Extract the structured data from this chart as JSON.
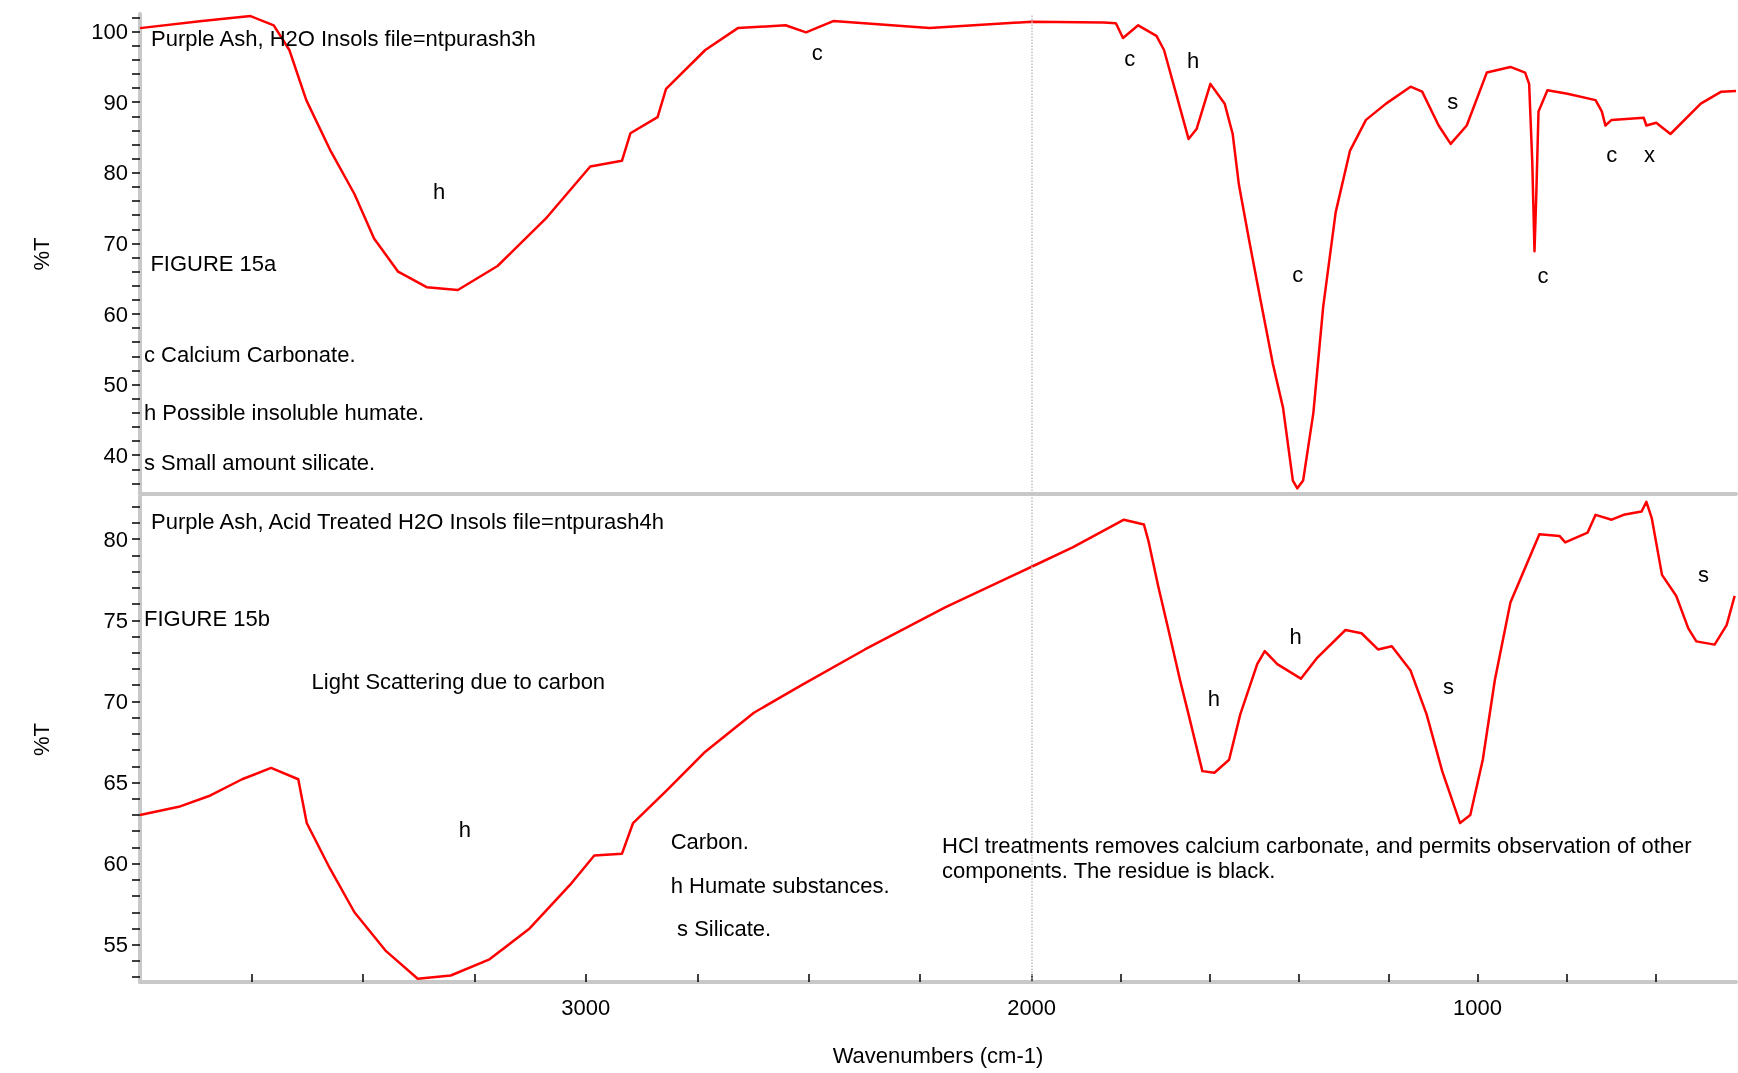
{
  "chart_data": [
    {
      "type": "line",
      "title": "Purple Ash, H2O Insols file=ntpurash3h",
      "ylabel": "%T",
      "color": "#ff0000",
      "tick_labels": "y",
      "xlim": [
        4000,
        420
      ],
      "ylim": [
        34.5,
        102.5
      ],
      "yticks": [
        {
          "value": 36,
          "label": null
        },
        {
          "value": 38,
          "label": null
        },
        40,
        {
          "value": 42,
          "label": null
        },
        {
          "value": 44,
          "label": null
        },
        {
          "value": 46,
          "label": null
        },
        {
          "value": 48,
          "label": null
        },
        50,
        {
          "value": 52,
          "label": null
        },
        {
          "value": 54,
          "label": null
        },
        {
          "value": 56,
          "label": null
        },
        {
          "value": 58,
          "label": null
        },
        60,
        {
          "value": 62,
          "label": null
        },
        {
          "value": 64,
          "label": null
        },
        {
          "value": 66,
          "label": null
        },
        {
          "value": 68,
          "label": null
        },
        70,
        {
          "value": 72,
          "label": null
        },
        {
          "value": 74,
          "label": null
        },
        {
          "value": 76,
          "label": null
        },
        {
          "value": 78,
          "label": null
        },
        80,
        {
          "value": 82,
          "label": null
        },
        {
          "value": 84,
          "label": null
        },
        {
          "value": 86,
          "label": null
        },
        {
          "value": 88,
          "label": null
        },
        90,
        {
          "value": 92,
          "label": null
        },
        {
          "value": 94,
          "label": null
        },
        {
          "value": 96,
          "label": null
        },
        {
          "value": 98,
          "label": null
        },
        100,
        {
          "value": 102,
          "label": null
        }
      ],
      "x": [
        4000,
        3861,
        3752,
        3700,
        3665,
        3627,
        3574,
        3519,
        3475,
        3421,
        3357,
        3287,
        3198,
        3090,
        2990,
        2919,
        2900,
        2839,
        2820,
        2732,
        2659,
        2552,
        2506,
        2445,
        2229,
        2000,
        1838,
        1811,
        1795,
        1761,
        1720,
        1703,
        1675,
        1648,
        1630,
        1599,
        1567,
        1549,
        1535,
        1512,
        1486,
        1459,
        1436,
        1414,
        1404,
        1391,
        1368,
        1346,
        1318,
        1286,
        1250,
        1205,
        1150,
        1124,
        1087,
        1060,
        1024,
        979,
        926,
        893,
        884,
        877,
        872,
        868,
        863,
        843,
        798,
        735,
        721,
        713,
        699,
        627,
        621,
        599,
        567,
        499,
        453,
        420
      ],
      "values": [
        100.5,
        101.5,
        102.2,
        100.9,
        97.4,
        90.3,
        83.3,
        77.0,
        70.7,
        66.0,
        63.8,
        63.4,
        66.8,
        73.5,
        80.9,
        81.7,
        85.6,
        87.9,
        91.9,
        97.4,
        100.5,
        100.9,
        99.9,
        101.5,
        100.5,
        101.4,
        101.3,
        101.2,
        99.1,
        100.9,
        99.4,
        97.4,
        91.0,
        84.8,
        86.2,
        92.6,
        89.8,
        85.5,
        78.3,
        70.4,
        61.8,
        53.0,
        46.7,
        36.4,
        35.3,
        36.4,
        46.0,
        61.0,
        74.4,
        83.1,
        87.5,
        89.8,
        92.2,
        91.5,
        86.7,
        84.1,
        86.7,
        94.2,
        95.0,
        94.2,
        92.6,
        81.6,
        68.9,
        76.8,
        88.7,
        91.7,
        91.2,
        90.3,
        88.7,
        86.7,
        87.5,
        87.8,
        86.7,
        87.1,
        85.5,
        89.8,
        91.5,
        91.6
      ],
      "ref_lines": [
        {
          "axis": "x",
          "value": 2000,
          "color": "#c0c0c0",
          "line_style": "dotted"
        }
      ],
      "annotations": [
        "FIGURE 15a",
        "c Calcium Carbonate.",
        "h Possible insoluble humate.",
        "s Small amount silicate.",
        "h",
        "c",
        "c",
        "h",
        "c",
        "s",
        "c",
        "c",
        "x"
      ]
    },
    {
      "type": "line",
      "title": "Purple Ash, Acid Treated H2O Insols file=ntpurash4h",
      "xlabel": "Wavenumbers (cm-1)",
      "ylabel": "%T",
      "color": "#ff0000",
      "xlim": [
        4000,
        420
      ],
      "ylim": [
        52.7,
        82.6
      ],
      "xticks": [
        {
          "value": 3750,
          "label": null
        },
        {
          "value": 3500,
          "label": null
        },
        {
          "value": 3250,
          "label": null
        },
        3000,
        {
          "value": 2750,
          "label": null
        },
        {
          "value": 2500,
          "label": null
        },
        {
          "value": 2250,
          "label": null
        },
        2000,
        {
          "value": 1800,
          "label": null
        },
        {
          "value": 1600,
          "label": null
        },
        {
          "value": 1400,
          "label": null
        },
        {
          "value": 1200,
          "label": null
        },
        1000,
        {
          "value": 800,
          "label": null
        },
        {
          "value": 600,
          "label": null
        }
      ],
      "yticks": [
        {
          "value": 53,
          "label": null
        },
        {
          "value": 54,
          "label": null
        },
        55,
        {
          "value": 56,
          "label": null
        },
        {
          "value": 57,
          "label": null
        },
        {
          "value": 58,
          "label": null
        },
        {
          "value": 59,
          "label": null
        },
        60,
        {
          "value": 61,
          "label": null
        },
        {
          "value": 62,
          "label": null
        },
        {
          "value": 63,
          "label": null
        },
        {
          "value": 64,
          "label": null
        },
        65,
        {
          "value": 66,
          "label": null
        },
        {
          "value": 67,
          "label": null
        },
        {
          "value": 68,
          "label": null
        },
        {
          "value": 69,
          "label": null
        },
        70,
        {
          "value": 71,
          "label": null
        },
        {
          "value": 72,
          "label": null
        },
        {
          "value": 73,
          "label": null
        },
        {
          "value": 74,
          "label": null
        },
        75,
        {
          "value": 76,
          "label": null
        },
        {
          "value": 77,
          "label": null
        },
        {
          "value": 78,
          "label": null
        },
        {
          "value": 79,
          "label": null
        },
        80,
        {
          "value": 81,
          "label": null
        },
        {
          "value": 82,
          "label": null
        }
      ],
      "x": [
        4000,
        3913,
        3842,
        3771,
        3706,
        3645,
        3626,
        3574,
        3519,
        3448,
        3377,
        3303,
        3216,
        3126,
        3035,
        2981,
        2919,
        2894,
        2819,
        2732,
        2623,
        2516,
        2374,
        2194,
        2000,
        1908,
        1827,
        1793,
        1748,
        1738,
        1716,
        1693,
        1667,
        1648,
        1617,
        1590,
        1557,
        1532,
        1494,
        1477,
        1449,
        1396,
        1359,
        1296,
        1260,
        1223,
        1192,
        1150,
        1114,
        1079,
        1039,
        1016,
        988,
        961,
        926,
        861,
        816,
        803,
        753,
        735,
        699,
        672,
        632,
        621,
        609,
        586,
        554,
        527,
        509,
        468,
        441,
        423
      ],
      "values": [
        63.0,
        63.5,
        64.2,
        65.2,
        65.9,
        65.2,
        62.5,
        59.7,
        57.0,
        54.6,
        52.9,
        53.1,
        54.1,
        56.0,
        58.7,
        60.5,
        60.6,
        62.5,
        64.5,
        66.9,
        69.3,
        71.0,
        73.2,
        75.8,
        78.3,
        79.5,
        80.7,
        81.2,
        80.9,
        79.9,
        77.1,
        74.4,
        71.3,
        69.2,
        65.7,
        65.6,
        66.4,
        69.2,
        72.3,
        73.1,
        72.3,
        71.4,
        72.7,
        74.4,
        74.2,
        73.2,
        73.4,
        71.9,
        69.2,
        65.7,
        62.5,
        63.0,
        66.4,
        71.3,
        76.1,
        80.3,
        80.2,
        79.8,
        80.4,
        81.5,
        81.2,
        81.5,
        81.7,
        82.3,
        81.3,
        77.8,
        76.5,
        74.5,
        73.7,
        73.5,
        74.7,
        76.5
      ],
      "ref_lines": [
        {
          "axis": "x",
          "value": 2000,
          "color": "#c0c0c0",
          "line_style": "dotted"
        }
      ],
      "annotations": [
        "FIGURE 15b",
        "Light Scattering due to carbon",
        "Carbon.",
        "h Humate substances.",
        "s Silicate.",
        "HCl treatments removes calcium carbonate, and permits observation of other components. The residue is black.",
        "h",
        "h",
        "h",
        "s",
        "s"
      ]
    }
  ]
}
